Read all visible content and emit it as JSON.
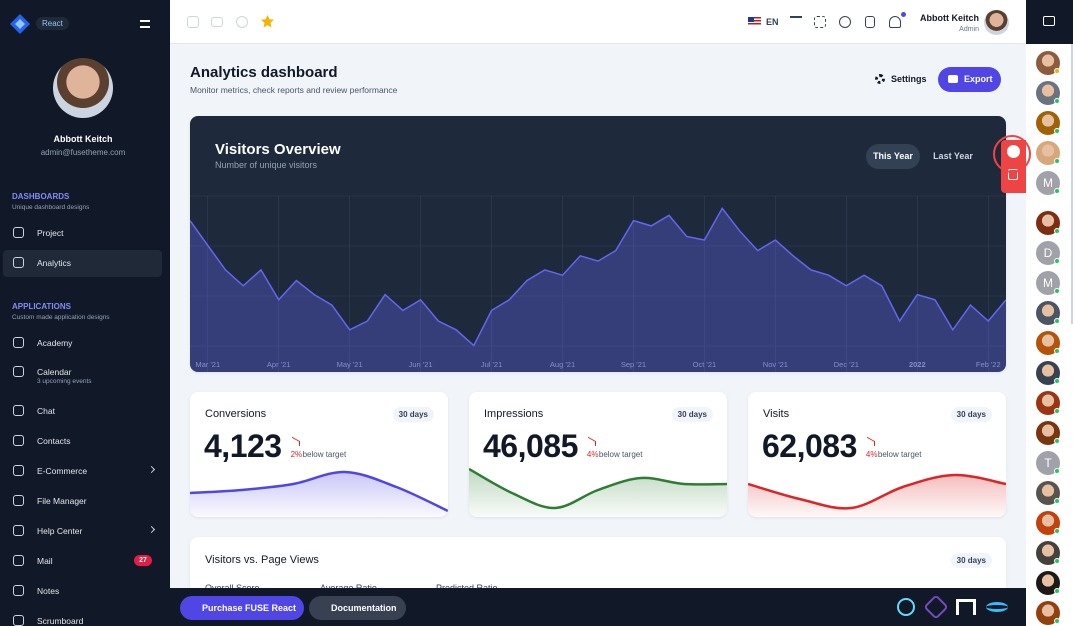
{
  "sidebar": {
    "brand": "React",
    "user": {
      "name": "Abbott Keitch",
      "email": "admin@fusetheme.com"
    },
    "sections": [
      {
        "title": "DASHBOARDS",
        "subtitle": "Unique dashboard designs",
        "items": [
          {
            "label": "Project"
          },
          {
            "label": "Analytics"
          }
        ]
      },
      {
        "title": "APPLICATIONS",
        "subtitle": "Custom made application designs",
        "items": [
          {
            "label": "Academy"
          },
          {
            "label": "Calendar",
            "sublabel": "3 upcoming events"
          },
          {
            "label": "Chat"
          },
          {
            "label": "Contacts"
          },
          {
            "label": "E-Commerce"
          },
          {
            "label": "File Manager"
          },
          {
            "label": "Help Center"
          },
          {
            "label": "Mail",
            "badge": 27
          },
          {
            "label": "Notes"
          },
          {
            "label": "Scrumboard"
          }
        ]
      }
    ]
  },
  "topbar": {
    "language": "EN",
    "user": {
      "name": "Abbott Keitch",
      "role": "Admin"
    }
  },
  "header": {
    "title": "Analytics dashboard",
    "subtitle": "Monitor metrics, check reports and review performance",
    "settings": "Settings",
    "export": "Export"
  },
  "tabs": [
    "This Year",
    "Last Year"
  ],
  "chart_data": [
    {
      "type": "area",
      "title": "Visitors Overview",
      "subtitle": "Number of unique visitors",
      "color": "#6366f1",
      "ylim": [
        0,
        100
      ],
      "categories": [
        null,
        "Mar '21",
        null,
        null,
        null,
        "Apr '21",
        null,
        null,
        null,
        "May '21",
        null,
        null,
        null,
        "Jun '21",
        null,
        null,
        null,
        "Jul '21",
        null,
        null,
        null,
        "Aug '21",
        null,
        null,
        null,
        "Sep '21",
        null,
        null,
        null,
        "Oct '21",
        null,
        null,
        null,
        "Nov '21",
        null,
        null,
        null,
        "Dec '21",
        null,
        null,
        null,
        "2022",
        null,
        null,
        null,
        "Feb '22",
        null
      ],
      "values": [
        86,
        72,
        58,
        49,
        58,
        41,
        52,
        44,
        38,
        24,
        29,
        44,
        35,
        41,
        29,
        24,
        15,
        35,
        41,
        52,
        58,
        55,
        66,
        63,
        69,
        86,
        83,
        89,
        77,
        75,
        93,
        80,
        69,
        75,
        66,
        58,
        55,
        49,
        55,
        49,
        29,
        44,
        41,
        24,
        38,
        29,
        41
      ]
    },
    {
      "type": "area",
      "color": "#4f46e5",
      "ylim": [
        0,
        100
      ],
      "values": [
        40,
        45,
        55,
        75,
        50,
        10
      ]
    },
    {
      "type": "area",
      "color": "#2e7d32",
      "ylim": [
        0,
        100
      ],
      "values": [
        80,
        40,
        15,
        45,
        65,
        55,
        55
      ]
    },
    {
      "type": "area",
      "color": "#dc2626",
      "ylim": [
        0,
        100
      ],
      "values": [
        55,
        30,
        15,
        50,
        70,
        55
      ]
    }
  ],
  "cards": [
    {
      "title": "Conversions",
      "period": "30 days",
      "total": "4,123",
      "change": "2%",
      "note": "below target"
    },
    {
      "title": "Impressions",
      "period": "30 days",
      "total": "46,085",
      "change": "4%",
      "note": "below target"
    },
    {
      "title": "Visits",
      "period": "30 days",
      "total": "62,083",
      "change": "4%",
      "note": "below target"
    }
  ],
  "bottom_card": {
    "title": "Visitors vs. Page Views",
    "period": "30 days",
    "metrics": [
      "Overall Score",
      "Average Ratio",
      "Predicted Ratio"
    ]
  },
  "footer": {
    "purchase": "Purchase FUSE React",
    "docs": "Documentation"
  },
  "contacts": [
    {
      "initial": "M"
    },
    {
      "initial": "D"
    },
    {
      "initial": "M"
    },
    {
      "initial": "T"
    }
  ]
}
